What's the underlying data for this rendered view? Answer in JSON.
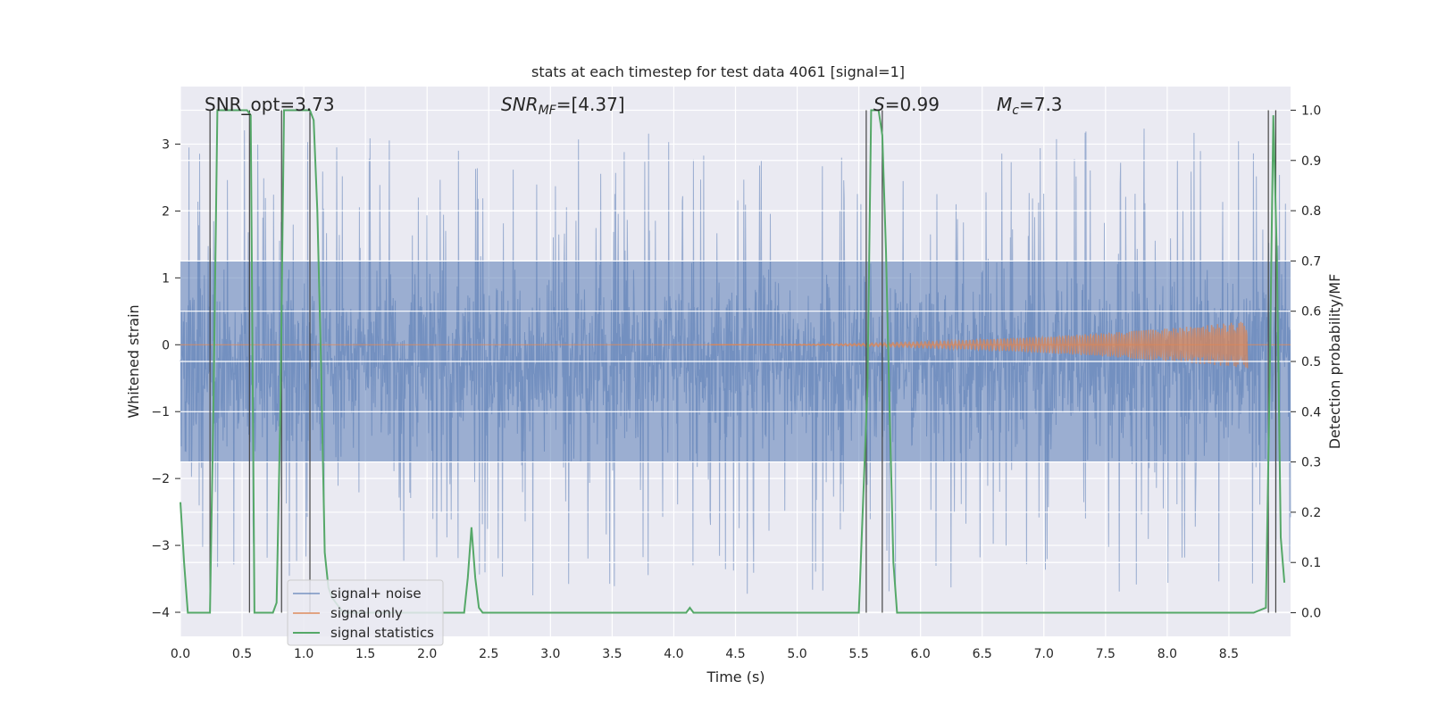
{
  "chart_data": {
    "type": "line",
    "title": "stats at each timestep for test data 4061 [signal=1]",
    "xlabel": "Time (s)",
    "ylabel": "Whitened strain",
    "y2label": "Detection probability/MF",
    "xlim": [
      0,
      9
    ],
    "ylim": [
      -4.36,
      3.86
    ],
    "y2lim": [
      -0.047,
      1.047
    ],
    "xticks": [
      0.0,
      0.5,
      1.0,
      1.5,
      2.0,
      2.5,
      3.0,
      3.5,
      4.0,
      4.5,
      5.0,
      5.5,
      6.0,
      6.5,
      7.0,
      7.5,
      8.0,
      8.5
    ],
    "xtick_labels": [
      "0.0",
      "0.5",
      "1.0",
      "1.5",
      "2.0",
      "2.5",
      "3.0",
      "3.5",
      "4.0",
      "4.5",
      "5.0",
      "5.5",
      "6.0",
      "6.5",
      "7.0",
      "7.5",
      "8.0",
      "8.5"
    ],
    "yticks": [
      3,
      2,
      1,
      0,
      -1,
      -2,
      -3,
      -4
    ],
    "ytick_labels": [
      "3",
      "2",
      "1",
      "0",
      "−1",
      "−2",
      "−3",
      "−4"
    ],
    "y2ticks": [
      1.0,
      0.9,
      0.8,
      0.7,
      0.6,
      0.5,
      0.4,
      0.3,
      0.2,
      0.1,
      0.0
    ],
    "y2tick_labels": [
      "1.0",
      "0.9",
      "0.8",
      "0.7",
      "0.6",
      "0.5",
      "0.4",
      "0.3",
      "0.2",
      "0.1",
      "0.0"
    ],
    "annotations": {
      "snr_opt": "SNR_opt=3.73",
      "snr_mf_main": "SNR",
      "snr_mf_sub": "MF",
      "snr_mf_value": "=[4.37]",
      "s_label": "S",
      "s_value": "=0.99",
      "mc_main": "M",
      "mc_sub": "c",
      "mc_value": "=7.3"
    },
    "legend": {
      "position": "lower-left",
      "entries": [
        "signal+ noise",
        "signal only",
        "signal statistics"
      ]
    },
    "series": [
      {
        "name": "signal+ noise",
        "color": "#4c72b0",
        "kind": "noise",
        "x_range": [
          0,
          9
        ],
        "core_band": [
          -1.75,
          1.25
        ],
        "spike_range": [
          -4.0,
          3.5
        ]
      },
      {
        "name": "signal only",
        "color": "#dd8452",
        "kind": "chirp",
        "start": 4.3,
        "end": 8.65,
        "peak_amplitude": 0.35
      },
      {
        "name": "signal statistics",
        "color": "#55a868",
        "x": [
          0.0,
          0.03,
          0.06,
          0.09,
          0.12,
          0.15,
          0.18,
          0.21,
          0.24,
          0.27,
          0.3,
          0.33,
          0.36,
          0.39,
          0.42,
          0.45,
          0.48,
          0.51,
          0.54,
          0.57,
          0.6,
          0.63,
          0.66,
          0.69,
          0.72,
          0.75,
          0.78,
          0.81,
          0.84,
          0.87,
          0.9,
          0.93,
          0.96,
          0.99,
          1.02,
          1.05,
          1.08,
          1.11,
          1.14,
          1.17,
          1.2,
          1.23,
          1.26,
          1.29,
          1.32,
          1.35,
          1.38,
          1.41,
          1.44,
          1.47,
          1.5,
          1.8,
          2.1,
          2.3,
          2.33,
          2.36,
          2.39,
          2.42,
          2.45,
          2.48,
          2.51,
          2.6,
          3.0,
          3.5,
          4.0,
          4.05,
          4.1,
          4.13,
          4.16,
          4.2,
          4.3,
          5.0,
          5.5,
          5.57,
          5.6,
          5.63,
          5.66,
          5.69,
          5.72,
          5.75,
          5.78,
          5.81,
          6.0,
          7.0,
          8.0,
          8.7,
          8.8,
          8.83,
          8.86,
          8.89,
          8.92,
          8.95
        ],
        "y": [
          0.22,
          0.1,
          0.0,
          0.0,
          0.0,
          0.0,
          0.0,
          0.0,
          0.0,
          0.45,
          1.0,
          1.0,
          1.0,
          1.0,
          1.0,
          1.0,
          1.0,
          1.0,
          1.0,
          0.99,
          0.0,
          0.0,
          0.0,
          0.0,
          0.0,
          0.0,
          0.02,
          0.4,
          1.0,
          1.0,
          1.0,
          1.0,
          1.0,
          1.0,
          1.0,
          1.0,
          0.98,
          0.8,
          0.5,
          0.12,
          0.05,
          0.03,
          0.02,
          0.01,
          0.0,
          0.0,
          0.0,
          0.0,
          0.0,
          0.0,
          0.0,
          0.0,
          0.0,
          0.0,
          0.07,
          0.17,
          0.07,
          0.01,
          0.0,
          0.0,
          0.0,
          0.0,
          0.0,
          0.0,
          0.0,
          0.0,
          0.0,
          0.01,
          0.0,
          0.0,
          0.0,
          0.0,
          0.0,
          0.45,
          1.0,
          1.0,
          1.0,
          0.95,
          0.72,
          0.4,
          0.1,
          0.0,
          0.0,
          0.0,
          0.0,
          0.0,
          0.01,
          0.45,
          0.99,
          0.7,
          0.15,
          0.06
        ]
      }
    ],
    "vertical_markers": [
      0.24,
      0.56,
      0.82,
      1.05,
      5.56,
      5.69,
      8.82,
      8.88
    ]
  }
}
